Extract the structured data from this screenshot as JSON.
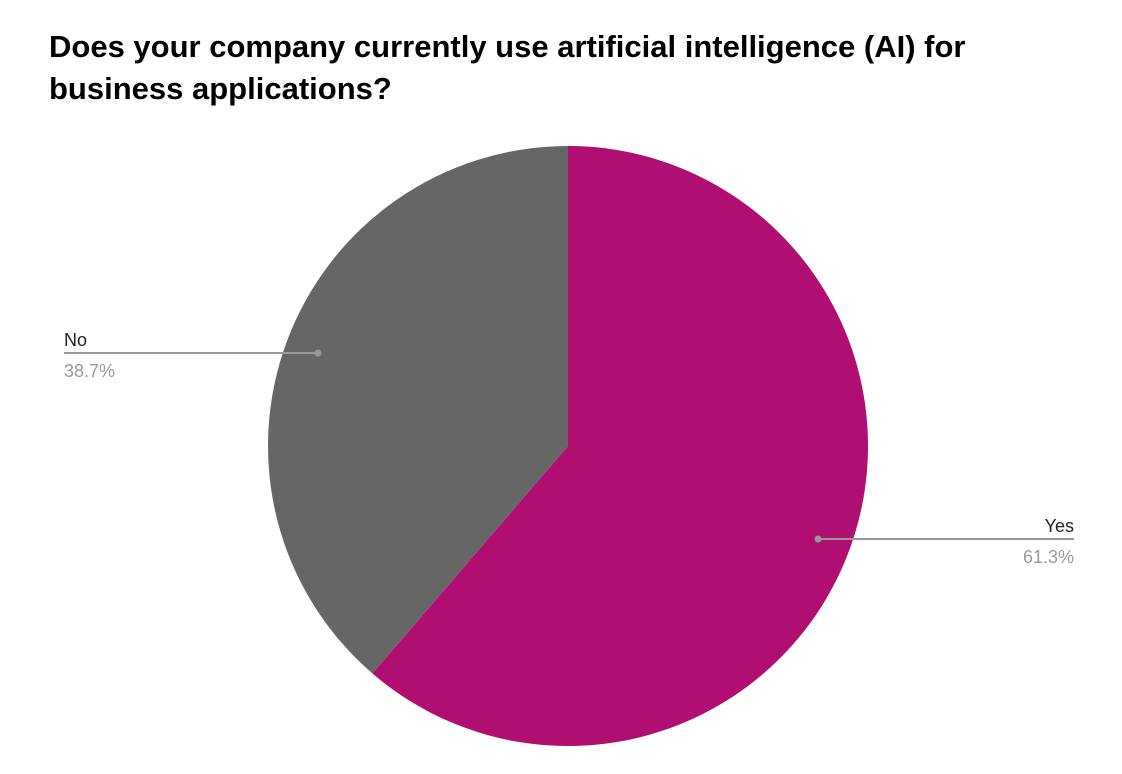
{
  "chart_data": {
    "type": "pie",
    "title": "Does your company currently use artificial intelligence (AI) for business applications?",
    "slices": [
      {
        "label": "Yes",
        "value": 61.3,
        "value_label": "61.3%",
        "color": "#b10e72"
      },
      {
        "label": "No",
        "value": 38.7,
        "value_label": "38.7%",
        "color": "#666666"
      }
    ],
    "start": "12 o'clock",
    "direction": "clockwise",
    "legend": "none",
    "leader_line_color": "#999999"
  }
}
